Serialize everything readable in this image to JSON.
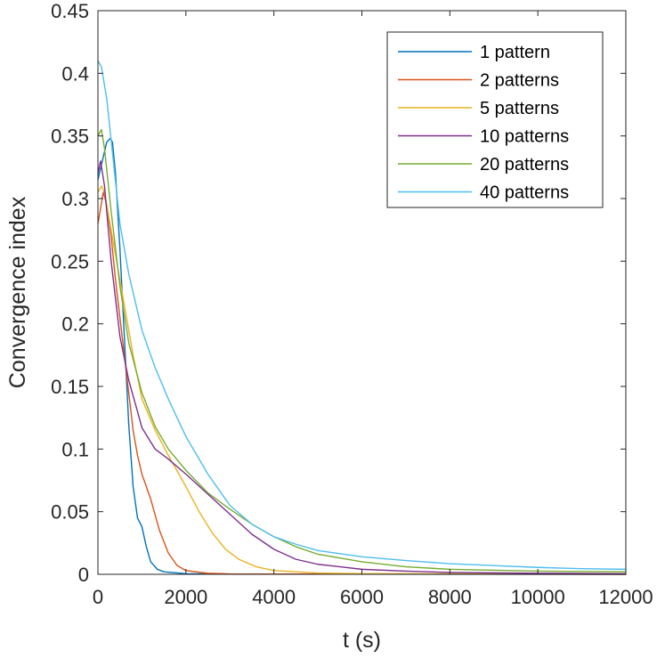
{
  "chart_data": {
    "type": "line",
    "title": "",
    "xlabel": "t (s)",
    "ylabel": "Convergence index",
    "xlim": [
      0,
      12000
    ],
    "ylim": [
      0,
      0.45
    ],
    "xticks": [
      0,
      2000,
      4000,
      6000,
      8000,
      10000,
      12000
    ],
    "xtick_labels": [
      "0",
      "2000",
      "4000",
      "6000",
      "8000",
      "10000",
      "12000"
    ],
    "yticks": [
      0,
      0.05,
      0.1,
      0.15,
      0.2,
      0.25,
      0.3,
      0.35,
      0.4,
      0.45
    ],
    "ytick_labels": [
      "0",
      "0.05",
      "0.1",
      "0.15",
      "0.2",
      "0.25",
      "0.3",
      "0.35",
      "0.4",
      "0.45"
    ],
    "grid": false,
    "legend_position": "top-right",
    "series": [
      {
        "name": "1 pattern",
        "color": "#0072BD",
        "points": [
          [
            0,
            0.315
          ],
          [
            100,
            0.33
          ],
          [
            200,
            0.345
          ],
          [
            280,
            0.348
          ],
          [
            330,
            0.345
          ],
          [
            400,
            0.32
          ],
          [
            500,
            0.26
          ],
          [
            600,
            0.19
          ],
          [
            700,
            0.12
          ],
          [
            800,
            0.07
          ],
          [
            900,
            0.045
          ],
          [
            1000,
            0.038
          ],
          [
            1100,
            0.022
          ],
          [
            1200,
            0.01
          ],
          [
            1350,
            0.004
          ],
          [
            1500,
            0.002
          ],
          [
            2000,
            0.0005
          ],
          [
            3000,
            0.0002
          ],
          [
            12000,
            0.0
          ]
        ]
      },
      {
        "name": "2 patterns",
        "color": "#D95319",
        "points": [
          [
            0,
            0.28
          ],
          [
            50,
            0.29
          ],
          [
            120,
            0.305
          ],
          [
            200,
            0.295
          ],
          [
            300,
            0.27
          ],
          [
            400,
            0.235
          ],
          [
            500,
            0.205
          ],
          [
            600,
            0.175
          ],
          [
            700,
            0.145
          ],
          [
            800,
            0.115
          ],
          [
            900,
            0.095
          ],
          [
            1000,
            0.08
          ],
          [
            1200,
            0.06
          ],
          [
            1400,
            0.035
          ],
          [
            1600,
            0.017
          ],
          [
            1800,
            0.007
          ],
          [
            2000,
            0.003
          ],
          [
            2500,
            0.0008
          ],
          [
            3000,
            0.0003
          ],
          [
            12000,
            0.0
          ]
        ]
      },
      {
        "name": "5 patterns",
        "color": "#EDB120",
        "points": [
          [
            0,
            0.305
          ],
          [
            80,
            0.31
          ],
          [
            150,
            0.305
          ],
          [
            250,
            0.285
          ],
          [
            400,
            0.255
          ],
          [
            600,
            0.215
          ],
          [
            800,
            0.175
          ],
          [
            1000,
            0.14
          ],
          [
            1300,
            0.115
          ],
          [
            1600,
            0.095
          ],
          [
            2000,
            0.07
          ],
          [
            2300,
            0.05
          ],
          [
            2600,
            0.033
          ],
          [
            2900,
            0.02
          ],
          [
            3200,
            0.012
          ],
          [
            3600,
            0.006
          ],
          [
            4000,
            0.003
          ],
          [
            5000,
            0.001
          ],
          [
            6000,
            0.0005
          ],
          [
            12000,
            0.0001
          ]
        ]
      },
      {
        "name": "10 patterns",
        "color": "#7E2F8E",
        "points": [
          [
            0,
            0.32
          ],
          [
            60,
            0.33
          ],
          [
            150,
            0.31
          ],
          [
            300,
            0.25
          ],
          [
            500,
            0.19
          ],
          [
            700,
            0.155
          ],
          [
            900,
            0.13
          ],
          [
            1000,
            0.117
          ],
          [
            1300,
            0.1
          ],
          [
            1600,
            0.092
          ],
          [
            2000,
            0.08
          ],
          [
            2500,
            0.064
          ],
          [
            3000,
            0.048
          ],
          [
            3500,
            0.032
          ],
          [
            4000,
            0.02
          ],
          [
            4500,
            0.012
          ],
          [
            5000,
            0.008
          ],
          [
            6000,
            0.004
          ],
          [
            7000,
            0.0025
          ],
          [
            8000,
            0.0015
          ],
          [
            10000,
            0.0008
          ],
          [
            12000,
            0.0005
          ]
        ]
      },
      {
        "name": "20 patterns",
        "color": "#77AC30",
        "points": [
          [
            0,
            0.35
          ],
          [
            80,
            0.355
          ],
          [
            150,
            0.34
          ],
          [
            300,
            0.29
          ],
          [
            500,
            0.23
          ],
          [
            700,
            0.185
          ],
          [
            1000,
            0.145
          ],
          [
            1300,
            0.118
          ],
          [
            1600,
            0.1
          ],
          [
            2000,
            0.083
          ],
          [
            2500,
            0.065
          ],
          [
            3000,
            0.052
          ],
          [
            3500,
            0.04
          ],
          [
            4000,
            0.03
          ],
          [
            4500,
            0.022
          ],
          [
            5000,
            0.016
          ],
          [
            6000,
            0.01
          ],
          [
            7000,
            0.006
          ],
          [
            8000,
            0.004
          ],
          [
            10000,
            0.0025
          ],
          [
            12000,
            0.002
          ]
        ]
      },
      {
        "name": "40 patterns",
        "color": "#4DBEEE",
        "points": [
          [
            0,
            0.41
          ],
          [
            80,
            0.405
          ],
          [
            200,
            0.38
          ],
          [
            350,
            0.33
          ],
          [
            500,
            0.28
          ],
          [
            700,
            0.24
          ],
          [
            1000,
            0.195
          ],
          [
            1300,
            0.165
          ],
          [
            1600,
            0.14
          ],
          [
            2000,
            0.11
          ],
          [
            2500,
            0.08
          ],
          [
            3000,
            0.055
          ],
          [
            3500,
            0.04
          ],
          [
            4000,
            0.03
          ],
          [
            4500,
            0.024
          ],
          [
            5000,
            0.019
          ],
          [
            6000,
            0.014
          ],
          [
            7000,
            0.011
          ],
          [
            8000,
            0.0085
          ],
          [
            9000,
            0.007
          ],
          [
            10000,
            0.0055
          ],
          [
            11000,
            0.0045
          ],
          [
            12000,
            0.004
          ]
        ]
      }
    ]
  }
}
